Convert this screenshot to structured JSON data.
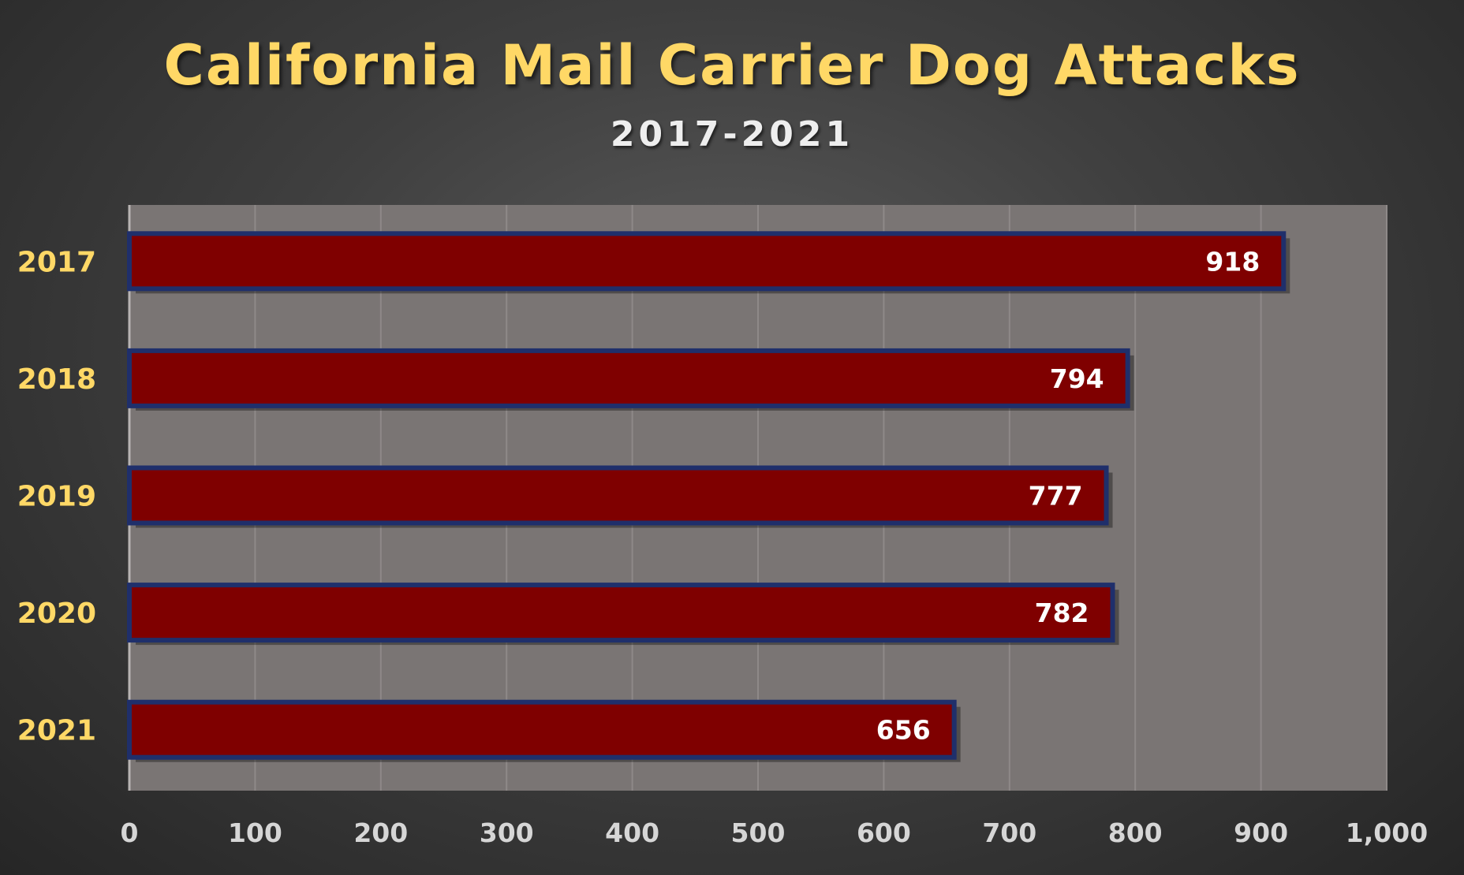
{
  "chart_data": {
    "type": "bar",
    "orientation": "horizontal",
    "title": "California Mail Carrier Dog Attacks",
    "subtitle": "2017-2021",
    "categories": [
      "2017",
      "2018",
      "2019",
      "2020",
      "2021"
    ],
    "values": [
      918,
      794,
      777,
      782,
      656
    ],
    "xlabel": "",
    "ylabel": "",
    "xlim": [
      0,
      1000
    ],
    "xticks": [
      0,
      100,
      200,
      300,
      400,
      500,
      600,
      700,
      800,
      900,
      1000
    ],
    "xtick_labels": [
      "0",
      "100",
      "200",
      "300",
      "400",
      "500",
      "600",
      "700",
      "800",
      "900",
      "1,000"
    ],
    "grid": "vertical",
    "data_labels": true,
    "legend": "none",
    "colors": {
      "bar_fill": "#7f0000",
      "bar_border": "#1f2f6b",
      "plot_background": "#7a7574",
      "gridline": "#8e8988",
      "title": "#ffd866",
      "category_label": "#ffd866",
      "tick_label": "#d6d6d6",
      "data_label": "#ffffff"
    }
  }
}
